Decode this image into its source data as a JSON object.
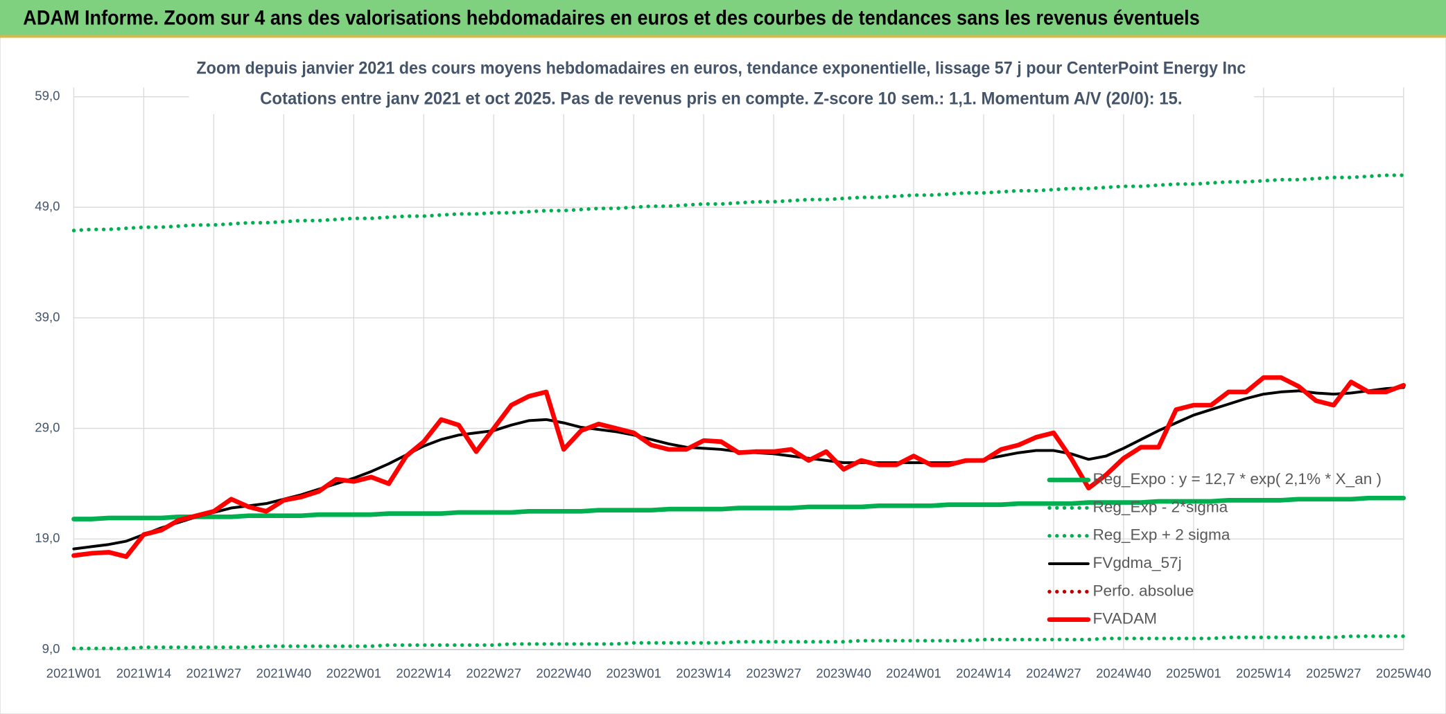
{
  "header": {
    "title": "ADAM Informe. Zoom sur 4 ans des valorisations hebdomadaires en euros et des courbes de tendances sans les revenus éventuels"
  },
  "chart_data": {
    "type": "line",
    "title": "Zoom depuis janvier 2021 des cours moyens hebdomadaires en euros, tendance exponentielle, lissage 57 j pour CenterPoint Energy Inc",
    "subtitle": "Cotations entre janv 2021 et oct 2025. Pas de revenus pris en compte. Z-score 10 sem.: 1,1. Momentum A/V (20/0): 15.",
    "categories": [
      "2021W01",
      null,
      null,
      null,
      "2021W14",
      null,
      null,
      null,
      "2021W27",
      null,
      null,
      null,
      "2021W40",
      null,
      null,
      null,
      "2022W01",
      null,
      null,
      null,
      "2022W14",
      null,
      null,
      null,
      "2022W27",
      null,
      null,
      null,
      "2022W40",
      null,
      null,
      null,
      "2023W01",
      null,
      null,
      null,
      "2023W14",
      null,
      null,
      null,
      "2023W27",
      null,
      null,
      null,
      "2023W40",
      null,
      null,
      null,
      "2024W01",
      null,
      null,
      null,
      "2024W14",
      null,
      null,
      null,
      "2024W27",
      null,
      null,
      null,
      "2024W40",
      null,
      null,
      null,
      "2025W01",
      null,
      null,
      null,
      "2025W14",
      null,
      null,
      null,
      "2025W27",
      null,
      null,
      null,
      "2025W40"
    ],
    "ylim": [
      9,
      59
    ],
    "yticks": [
      {
        "value": 9,
        "label": "9,0"
      },
      {
        "value": 19,
        "label": "19,0"
      },
      {
        "value": 29,
        "label": "29,0"
      },
      {
        "value": 39,
        "label": "39,0"
      },
      {
        "value": 49,
        "label": "49,0"
      },
      {
        "value": 59,
        "label": "59,0"
      }
    ],
    "grid": true,
    "legend": "lower right",
    "series": [
      {
        "name": "Reg_Expo : y = 12,7 * exp( 2,1% *  X_an )",
        "color": "#00b050",
        "style": "thick",
        "values": [
          20.8,
          20.8,
          20.9,
          20.9,
          20.9,
          20.9,
          21.0,
          21.0,
          21.0,
          21.0,
          21.1,
          21.1,
          21.1,
          21.1,
          21.2,
          21.2,
          21.2,
          21.2,
          21.3,
          21.3,
          21.3,
          21.3,
          21.4,
          21.4,
          21.4,
          21.4,
          21.5,
          21.5,
          21.5,
          21.5,
          21.6,
          21.6,
          21.6,
          21.6,
          21.7,
          21.7,
          21.7,
          21.7,
          21.8,
          21.8,
          21.8,
          21.8,
          21.9,
          21.9,
          21.9,
          21.9,
          22.0,
          22.0,
          22.0,
          22.0,
          22.1,
          22.1,
          22.1,
          22.1,
          22.2,
          22.2,
          22.2,
          22.2,
          22.3,
          22.3,
          22.3,
          22.3,
          22.4,
          22.4,
          22.4,
          22.4,
          22.5,
          22.5,
          22.5,
          22.5,
          22.6,
          22.6,
          22.6,
          22.6,
          22.7,
          22.7,
          22.7
        ]
      },
      {
        "name": "Reg_Exp - 2*sigma",
        "color": "#00b050",
        "style": "dotted",
        "values": [
          9.1,
          9.1,
          9.1,
          9.1,
          9.2,
          9.2,
          9.2,
          9.2,
          9.2,
          9.2,
          9.2,
          9.3,
          9.3,
          9.3,
          9.3,
          9.3,
          9.3,
          9.3,
          9.4,
          9.4,
          9.4,
          9.4,
          9.4,
          9.4,
          9.4,
          9.5,
          9.5,
          9.5,
          9.5,
          9.5,
          9.5,
          9.5,
          9.6,
          9.6,
          9.6,
          9.6,
          9.6,
          9.6,
          9.7,
          9.7,
          9.7,
          9.7,
          9.7,
          9.7,
          9.7,
          9.8,
          9.8,
          9.8,
          9.8,
          9.8,
          9.8,
          9.8,
          9.9,
          9.9,
          9.9,
          9.9,
          9.9,
          9.9,
          9.9,
          10.0,
          10.0,
          10.0,
          10.0,
          10.0,
          10.0,
          10.0,
          10.1,
          10.1,
          10.1,
          10.1,
          10.1,
          10.1,
          10.1,
          10.2,
          10.2,
          10.2,
          10.2
        ]
      },
      {
        "name": "Reg_Exp + 2 sigma",
        "color": "#00b050",
        "style": "dotted",
        "values": [
          46.9,
          47.0,
          47.0,
          47.1,
          47.2,
          47.2,
          47.3,
          47.4,
          47.4,
          47.5,
          47.6,
          47.6,
          47.7,
          47.8,
          47.8,
          47.9,
          48.0,
          48.0,
          48.1,
          48.2,
          48.2,
          48.3,
          48.4,
          48.4,
          48.5,
          48.5,
          48.6,
          48.7,
          48.7,
          48.8,
          48.9,
          48.9,
          49.0,
          49.1,
          49.1,
          49.2,
          49.3,
          49.3,
          49.4,
          49.5,
          49.5,
          49.6,
          49.7,
          49.7,
          49.8,
          49.9,
          49.9,
          50.0,
          50.1,
          50.1,
          50.2,
          50.3,
          50.3,
          50.4,
          50.5,
          50.5,
          50.6,
          50.7,
          50.7,
          50.8,
          50.9,
          50.9,
          51.0,
          51.1,
          51.1,
          51.2,
          51.3,
          51.3,
          51.4,
          51.5,
          51.5,
          51.6,
          51.7,
          51.7,
          51.8,
          51.9,
          51.9
        ]
      },
      {
        "name": "FVgdma_57j",
        "color": "#000000",
        "style": "solid",
        "values": [
          18.1,
          18.3,
          18.5,
          18.8,
          19.4,
          20.0,
          20.5,
          21.0,
          21.4,
          21.8,
          22.0,
          22.2,
          22.6,
          23.0,
          23.5,
          24.0,
          24.5,
          25.1,
          25.8,
          26.6,
          27.4,
          28.0,
          28.4,
          28.6,
          28.8,
          29.3,
          29.7,
          29.8,
          29.5,
          29.1,
          28.9,
          28.7,
          28.4,
          28.0,
          27.6,
          27.3,
          27.2,
          27.1,
          26.9,
          26.8,
          26.7,
          26.5,
          26.3,
          26.1,
          25.9,
          25.9,
          25.9,
          25.9,
          25.9,
          25.9,
          25.9,
          26.0,
          26.2,
          26.5,
          26.8,
          27.0,
          27.0,
          26.7,
          26.2,
          26.5,
          27.2,
          28.0,
          28.8,
          29.5,
          30.2,
          30.7,
          31.2,
          31.7,
          32.1,
          32.3,
          32.4,
          32.2,
          32.1,
          32.2,
          32.4,
          32.6,
          32.7
        ]
      },
      {
        "name": "Perfo. absolue",
        "color": "#c00000",
        "style": "dotted",
        "values": [
          null,
          null,
          null,
          null,
          null,
          null,
          null,
          null,
          null,
          null,
          null,
          null,
          null,
          null,
          null,
          null,
          null,
          null,
          null,
          null,
          null,
          null,
          null,
          null,
          null,
          null,
          null,
          null,
          null,
          null,
          null,
          null,
          null,
          null,
          null,
          null,
          null,
          null,
          null,
          null,
          null,
          null,
          null,
          null,
          null,
          null,
          null,
          null,
          null,
          null,
          null,
          null,
          null,
          null,
          null,
          null,
          null,
          null,
          null,
          null,
          null,
          null,
          null,
          null,
          null,
          null,
          null,
          null,
          null,
          null,
          null,
          null,
          null,
          null,
          null,
          null,
          null
        ]
      },
      {
        "name": "FVADAM",
        "color": "#ff0000",
        "style": "thick",
        "values": [
          17.5,
          17.7,
          17.8,
          17.4,
          19.4,
          19.8,
          20.7,
          21.1,
          21.5,
          22.6,
          21.9,
          21.5,
          22.5,
          22.8,
          23.3,
          24.4,
          24.2,
          24.6,
          24.0,
          26.5,
          27.8,
          29.8,
          29.3,
          26.9,
          29.0,
          31.1,
          31.9,
          32.3,
          27.1,
          28.8,
          29.4,
          29.0,
          28.6,
          27.5,
          27.1,
          27.1,
          27.9,
          27.8,
          26.8,
          26.9,
          26.9,
          27.1,
          26.1,
          26.9,
          25.3,
          26.1,
          25.7,
          25.7,
          26.5,
          25.7,
          25.7,
          26.1,
          26.1,
          27.1,
          27.5,
          28.2,
          28.6,
          26.3,
          23.6,
          24.8,
          26.3,
          27.3,
          27.3,
          30.7,
          31.1,
          31.1,
          32.3,
          32.3,
          33.6,
          33.6,
          32.8,
          31.5,
          31.1,
          33.2,
          32.3,
          32.3,
          32.9
        ]
      }
    ]
  }
}
